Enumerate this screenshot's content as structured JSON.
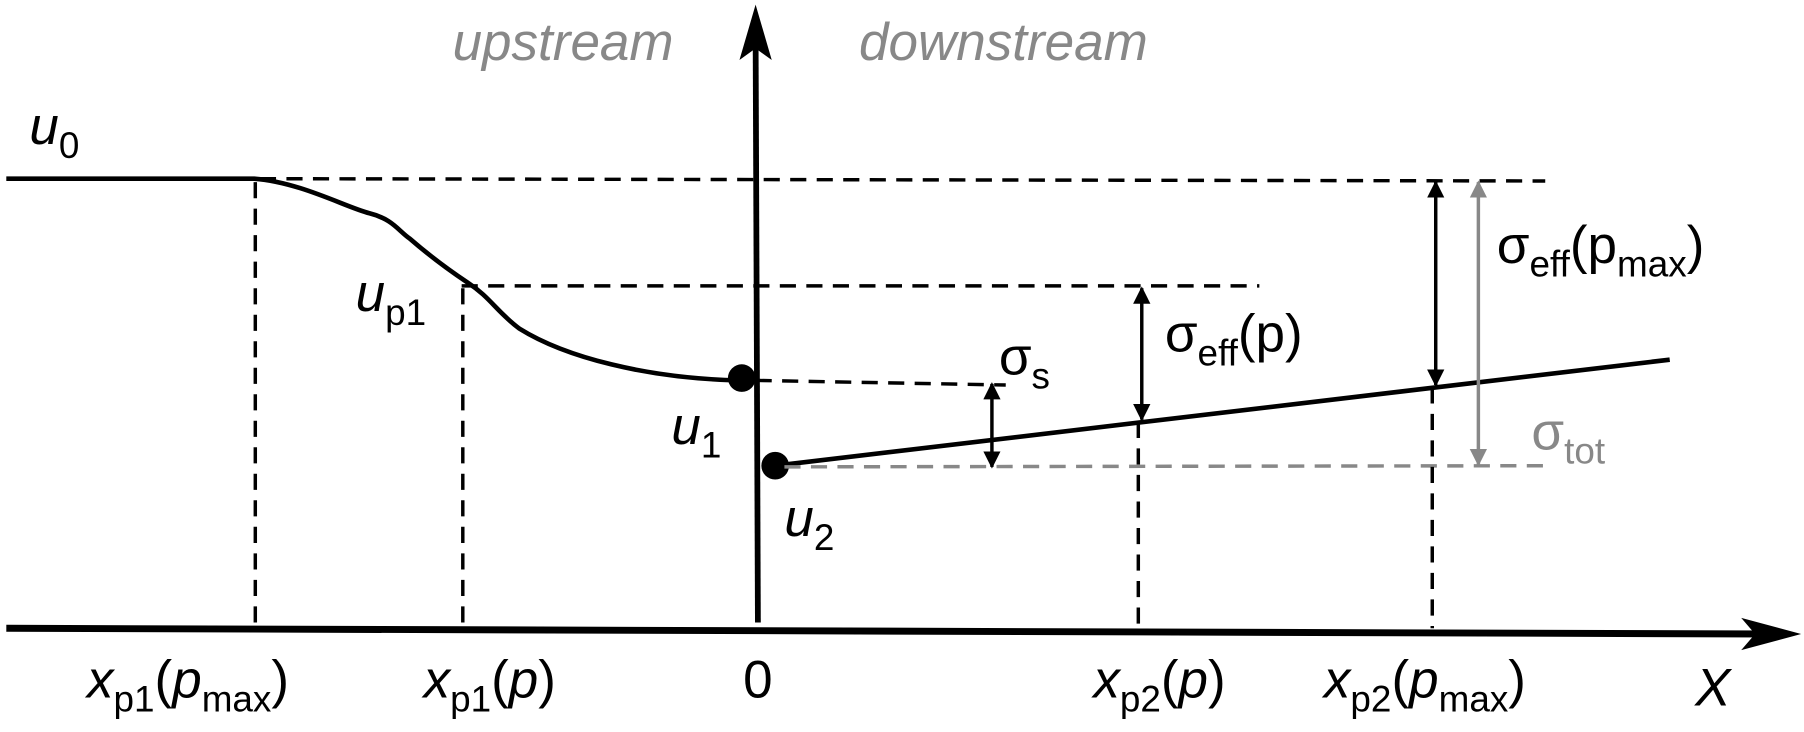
{
  "labels": {
    "upstream": [
      {
        "text": "upstream"
      }
    ],
    "downstream": [
      {
        "text": "downstream"
      }
    ],
    "u0": [
      {
        "i": "u"
      },
      {
        "sub": "0"
      }
    ],
    "up1": [
      {
        "i": "u"
      },
      {
        "sub": "p1"
      }
    ],
    "sigma_s": [
      {
        "text": "σ"
      },
      {
        "sub": "s"
      }
    ],
    "sigma_eff_p": [
      {
        "text": "σ"
      },
      {
        "sub": "eff"
      },
      {
        "text": "(p)"
      }
    ],
    "sigma_eff_pmax": [
      {
        "text": "σ"
      },
      {
        "sub": "eff"
      },
      {
        "text": "(p"
      },
      {
        "sub": "max"
      },
      {
        "text": ")"
      }
    ],
    "sigma_tot": [
      {
        "text": "σ"
      },
      {
        "sub": "tot"
      }
    ],
    "u1": [
      {
        "i": "u"
      },
      {
        "sub": "1"
      }
    ],
    "u2": [
      {
        "i": "u"
      },
      {
        "sub": "2"
      }
    ],
    "xp1_pmax": [
      {
        "i": "x"
      },
      {
        "sub": "p1"
      },
      {
        "text": "("
      },
      {
        "i": "p"
      },
      {
        "sub": "max"
      },
      {
        "text": ")"
      }
    ],
    "xp1_p": [
      {
        "i": "x"
      },
      {
        "sub": "p1"
      },
      {
        "text": "("
      },
      {
        "i": "p"
      },
      {
        "text": ")"
      }
    ],
    "zero": [
      {
        "text": "0"
      }
    ],
    "xp2_p": [
      {
        "i": "x"
      },
      {
        "sub": "p2"
      },
      {
        "text": "("
      },
      {
        "i": "p"
      },
      {
        "text": ")"
      }
    ],
    "xp2_pmax": [
      {
        "i": "x"
      },
      {
        "sub": "p2"
      },
      {
        "text": "("
      },
      {
        "i": "p"
      },
      {
        "sub": "max"
      },
      {
        "text": ")"
      }
    ],
    "axis_x": [
      {
        "i": "X"
      }
    ]
  }
}
